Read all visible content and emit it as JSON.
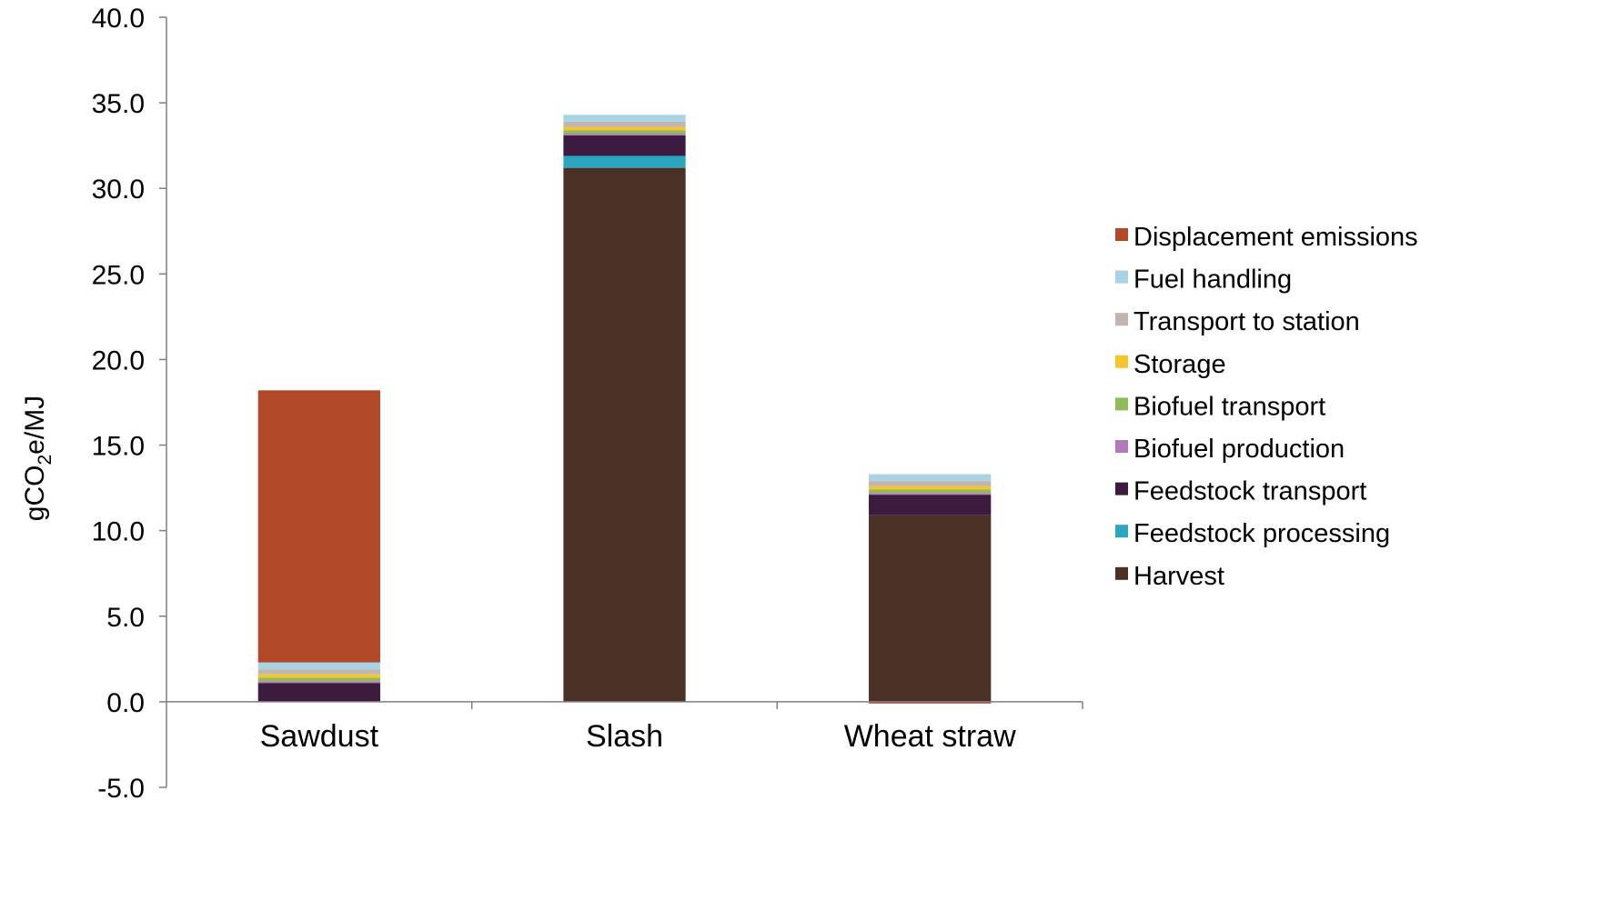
{
  "chart_data": {
    "type": "bar",
    "stacked": true,
    "ylabel": {
      "prefix": "gCO",
      "sub": "2",
      "suffix": "e/MJ"
    },
    "ylim": [
      -5.0,
      40.0
    ],
    "yticks": [
      "-5.0",
      "0.0",
      "5.0",
      "10.0",
      "15.0",
      "20.0",
      "25.0",
      "30.0",
      "35.0",
      "40.0"
    ],
    "categories": [
      "Sawdust",
      "Slash",
      "Wheat straw"
    ],
    "grid": false,
    "legend_position": "right",
    "series": [
      {
        "name": "Harvest",
        "color": "#4a3025",
        "values": [
          0.0,
          31.2,
          10.9
        ]
      },
      {
        "name": "Feedstock processing",
        "color": "#2aa6c0",
        "values": [
          0.0,
          0.7,
          0.0
        ]
      },
      {
        "name": "Feedstock transport",
        "color": "#3d1b40",
        "values": [
          1.1,
          1.2,
          1.2
        ]
      },
      {
        "name": "Biofuel production",
        "color": "#b07ab8",
        "values": [
          0.1,
          0.1,
          0.1
        ]
      },
      {
        "name": "Biofuel transport",
        "color": "#8fbc58",
        "values": [
          0.2,
          0.2,
          0.2
        ]
      },
      {
        "name": "Storage",
        "color": "#f5c52e",
        "values": [
          0.2,
          0.2,
          0.2
        ]
      },
      {
        "name": "Transport to station",
        "color": "#c0b5b0",
        "values": [
          0.3,
          0.3,
          0.3
        ]
      },
      {
        "name": "Fuel handling",
        "color": "#a9d3e3",
        "values": [
          0.4,
          0.4,
          0.4
        ]
      },
      {
        "name": "Displacement emissions",
        "color": "#b14827",
        "values": [
          15.9,
          0.0,
          -0.1
        ]
      }
    ]
  }
}
